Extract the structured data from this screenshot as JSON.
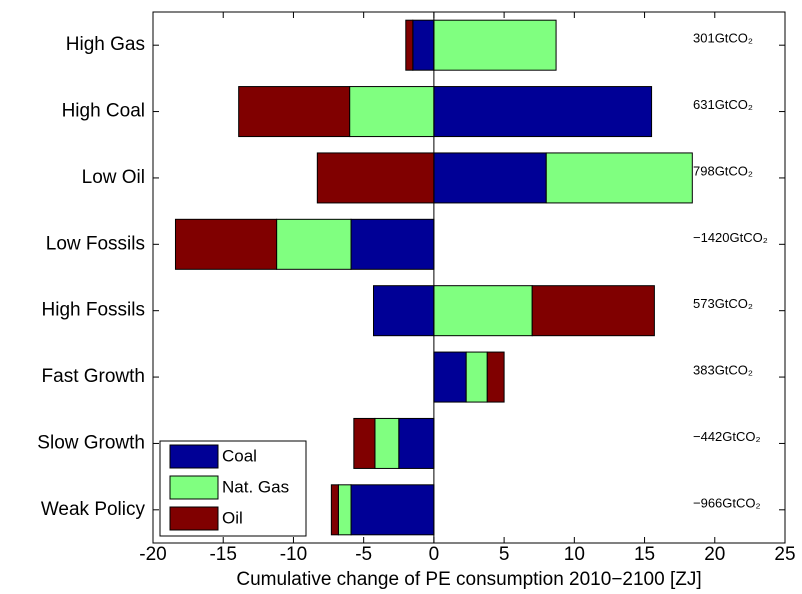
{
  "chart_data": {
    "type": "bar",
    "orientation": "horizontal",
    "stacked": true,
    "xlabel": "Cumulative change of PE consumption 2010−2100 [ZJ]",
    "categories": [
      "High Gas",
      "High Coal",
      "Low Oil",
      "Low Fossils",
      "High Fossils",
      "Fast Growth",
      "Slow Growth",
      "Weak Policy"
    ],
    "series": [
      {
        "name": "Coal",
        "color": "#000096",
        "values": [
          -1.5,
          15.5,
          8.0,
          -5.9,
          -4.3,
          2.3,
          -2.5,
          -5.9
        ]
      },
      {
        "name": "Nat. Gas",
        "color": "#80ff80",
        "values": [
          8.7,
          -6.0,
          10.4,
          -5.3,
          7.0,
          1.5,
          -1.7,
          -0.9
        ]
      },
      {
        "name": "Oil",
        "color": "#800000",
        "values": [
          -0.5,
          -7.9,
          -8.3,
          -7.2,
          8.7,
          1.2,
          -1.5,
          -0.5
        ]
      }
    ],
    "annotations": [
      "301GtCO₂",
      "631GtCO₂",
      "798GtCO₂",
      "−1420GtCO₂",
      "573GtCO₂",
      "383GtCO₂",
      "−442GtCO₂",
      "−966GtCO₂"
    ],
    "xlim": [
      -20,
      25
    ],
    "xticks": [
      -20,
      -15,
      -10,
      -5,
      0,
      5,
      10,
      15,
      20,
      25
    ],
    "legend": "lower left"
  }
}
